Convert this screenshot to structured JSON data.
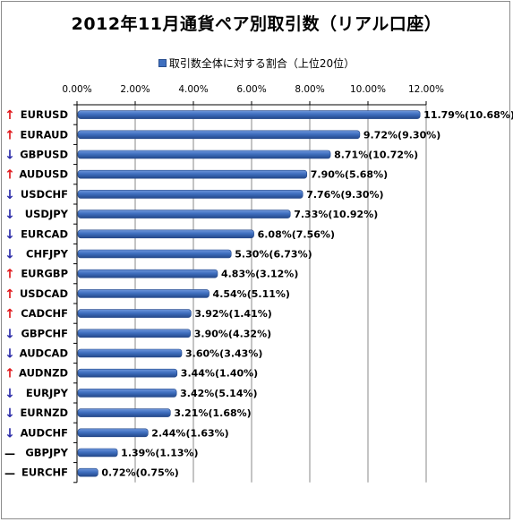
{
  "chart_data": {
    "type": "bar",
    "orientation": "horizontal",
    "title": "2012年11月通貨ペア別取引数（リアル口座）",
    "legend": {
      "position": "top",
      "entries": [
        "取引数全体に対する割合（上位20位）"
      ]
    },
    "xlim": [
      0,
      12
    ],
    "x_ticks": [
      "0.00%",
      "2.00%",
      "4.00%",
      "6.00%",
      "8.00%",
      "10.00%",
      "12.00%"
    ],
    "grid": true,
    "categories": [
      "EURUSD",
      "EURAUD",
      "GBPUSD",
      "AUDUSD",
      "USDCHF",
      "USDJPY",
      "EURCAD",
      "CHFJPY",
      "EURGBP",
      "USDCAD",
      "CADCHF",
      "GBPCHF",
      "AUDCAD",
      "AUDNZD",
      "EURJPY",
      "EURNZD",
      "AUDCHF",
      "GBPJPY",
      "EURCHF"
    ],
    "trend": [
      "up",
      "up",
      "down",
      "up",
      "down",
      "down",
      "down",
      "down",
      "up",
      "up",
      "up",
      "down",
      "down",
      "up",
      "down",
      "down",
      "down",
      "flat",
      "flat"
    ],
    "series": [
      {
        "name": "取引数全体に対する割合（上位20位）",
        "values": [
          11.79,
          9.72,
          8.71,
          7.9,
          7.76,
          7.33,
          6.08,
          5.3,
          4.83,
          4.54,
          3.92,
          3.9,
          3.6,
          3.44,
          3.42,
          3.21,
          2.44,
          1.39,
          0.72
        ],
        "labels": [
          "11.79%(10.68%)",
          "9.72%(9.30%)",
          "8.71%(10.72%)",
          "7.90%(5.68%)",
          "7.76%(9.30%)",
          "7.33%(10.92%)",
          "6.08%(7.56%)",
          "5.30%(6.73%)",
          "4.83%(3.12%)",
          "4.54%(5.11%)",
          "3.92%(1.41%)",
          "3.90%(4.32%)",
          "3.60%(3.43%)",
          "3.44%(1.40%)",
          "3.42%(5.14%)",
          "3.21%(1.68%)",
          "2.44%(1.63%)",
          "1.39%(1.13%)",
          "0.72%(0.75%)"
        ]
      }
    ]
  },
  "colors": {
    "bar": "#3f6fbf",
    "bar_dark": "#24488a",
    "up": "#e0181b",
    "down": "#2a2aa8",
    "flat": "#000000",
    "grid": "#8a8a8a"
  },
  "arrows": {
    "up": "↑",
    "down": "↓",
    "flat": "—"
  }
}
